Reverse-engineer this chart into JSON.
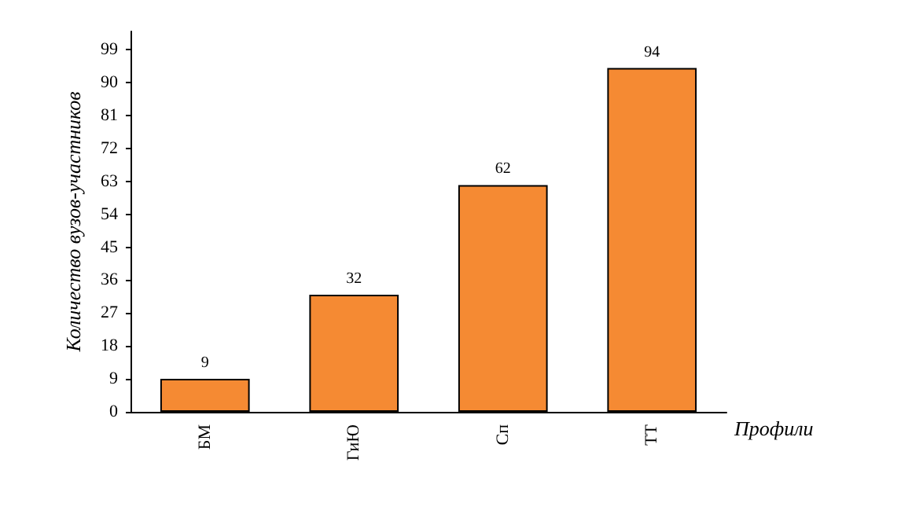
{
  "chart_data": {
    "type": "bar",
    "xlabel": "Профили",
    "ylabel": "Количество вузов-участников",
    "categories": [
      "БМ",
      "ГиЮ",
      "Сп",
      "ТТ"
    ],
    "values": [
      9,
      32,
      62,
      94
    ],
    "color": "#f58a33",
    "data_labels": true,
    "ylim": [
      0,
      104
    ],
    "yticks": [
      0,
      9,
      18,
      27,
      36,
      45,
      54,
      63,
      72,
      81,
      90,
      99
    ],
    "grid": false
  }
}
